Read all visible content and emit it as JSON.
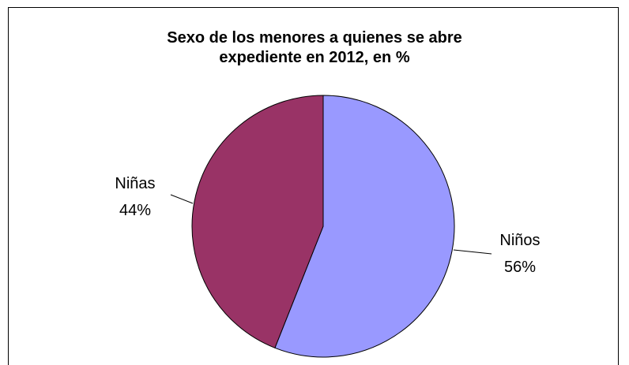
{
  "chart_data": {
    "type": "pie",
    "title": "Sexo de los menores a quienes se abre expediente en 2012, en %",
    "title_lines": [
      "Sexo de los menores a quienes se abre",
      "expediente en 2012, en %"
    ],
    "categories": [
      "Niños",
      "Niñas"
    ],
    "values": [
      56,
      44
    ],
    "unit": "%",
    "colors": [
      "#9999ff",
      "#993366"
    ],
    "labels": [
      {
        "name": "Niños",
        "value_text": "56%"
      },
      {
        "name": "Niñas",
        "value_text": "44%"
      }
    ],
    "start": "12 o'clock",
    "direction": "clockwise",
    "legend": "none"
  }
}
